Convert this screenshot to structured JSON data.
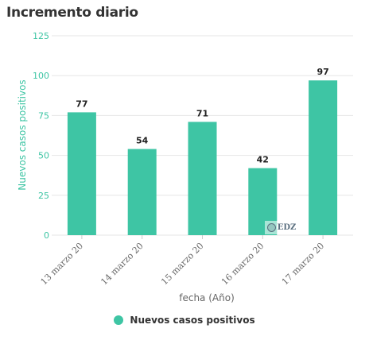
{
  "chart_data": {
    "type": "bar",
    "title": "Incremento diario",
    "categories": [
      "13 marzo 20",
      "14 marzo 20",
      "15 marzo 20",
      "16 marzo 20",
      "17 marzo 20"
    ],
    "series": [
      {
        "name": "Nuevos casos positivos",
        "values": [
          77,
          54,
          71,
          42,
          97
        ]
      }
    ],
    "xlabel": "fecha (Año)",
    "ylabel": "Nuevos casos positivos",
    "ylim": [
      0,
      125
    ],
    "yticks": [
      0,
      25,
      50,
      75,
      100,
      125
    ],
    "grid": true,
    "legend": "bottom-center",
    "bar_color": "#3ec5a4"
  },
  "watermark": {
    "text": "EDZ"
  }
}
